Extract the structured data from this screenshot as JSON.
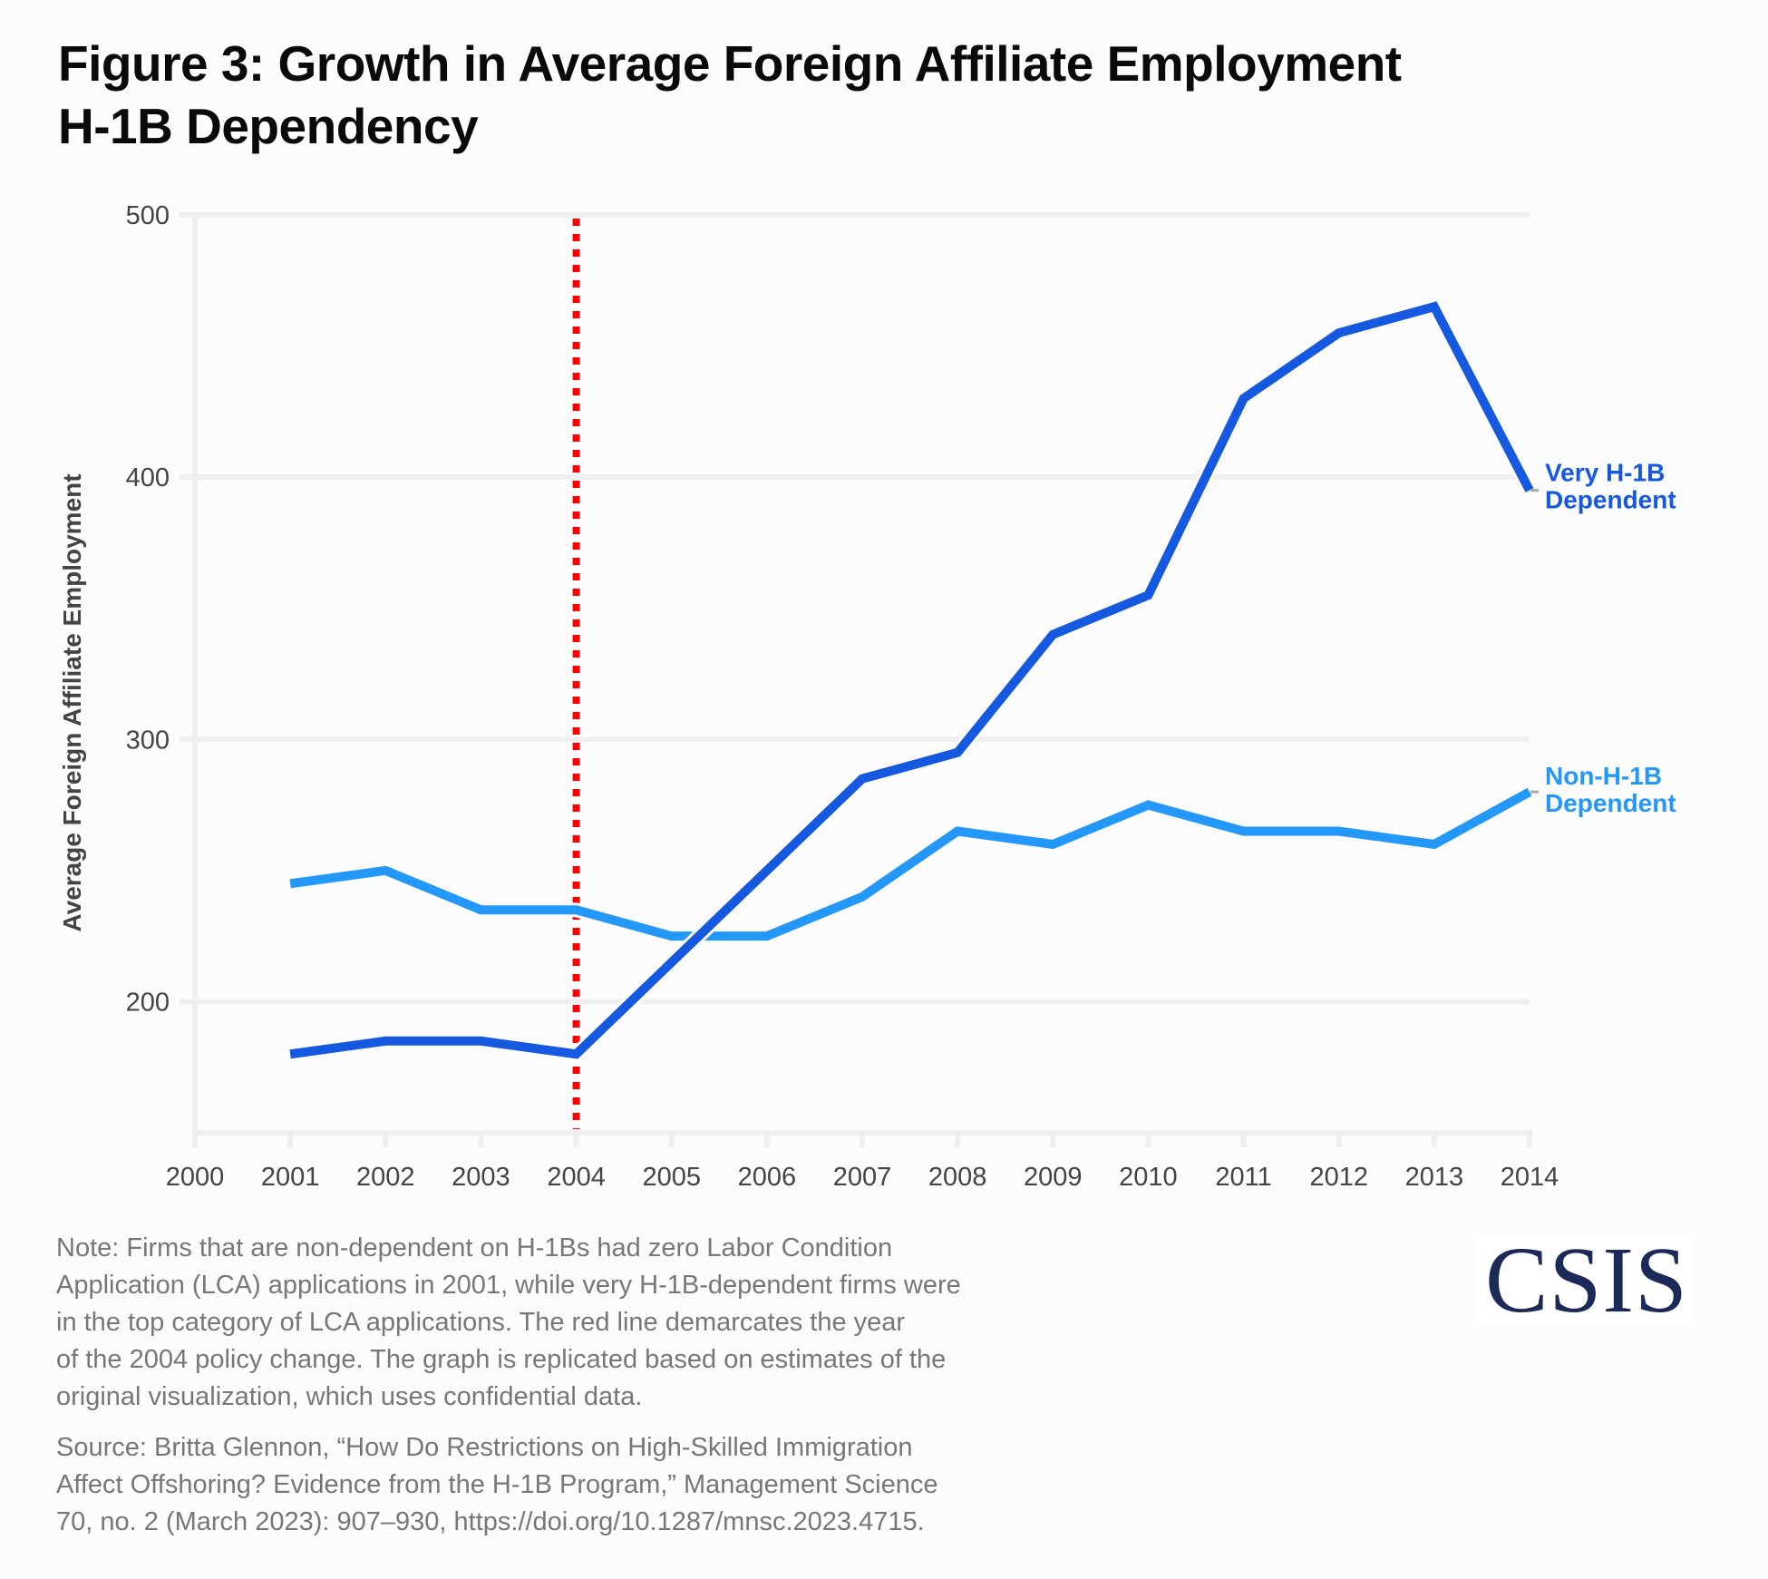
{
  "title": {
    "line1": "Figure 3: Growth in Average Foreign Affiliate Employment",
    "line2": "H-1B Dependency"
  },
  "chart_data": {
    "type": "line",
    "title": "Figure 3: Growth in Average Foreign Affiliate Employment H-1B Dependency",
    "xlabel": "",
    "ylabel": "Average Foreign Affiliate Employment",
    "xlim": [
      2000,
      2014
    ],
    "ylim": [
      150,
      500
    ],
    "x_ticks": [
      "2000",
      "2001",
      "2002",
      "2003",
      "2004",
      "2005",
      "2006",
      "2007",
      "2008",
      "2009",
      "2010",
      "2011",
      "2012",
      "2013",
      "2014"
    ],
    "y_ticks": [
      "200",
      "300",
      "400",
      "500"
    ],
    "grid": "horizontal",
    "legend": "direct labels at right end of lines",
    "x": [
      2001,
      2002,
      2003,
      2004,
      2005,
      2006,
      2007,
      2008,
      2009,
      2010,
      2011,
      2012,
      2013,
      2014
    ],
    "series": [
      {
        "name": "Very H-1B Dependent",
        "label_lines": [
          "Very H-1B",
          "Dependent"
        ],
        "color": "#1559e0",
        "values": [
          180,
          185,
          185,
          180,
          215,
          250,
          285,
          295,
          340,
          355,
          430,
          455,
          465,
          395
        ]
      },
      {
        "name": "Non-H-1B Dependent",
        "label_lines": [
          "Non-H-1B",
          "Dependent"
        ],
        "color": "#2398f9",
        "values": [
          245,
          250,
          235,
          235,
          225,
          225,
          240,
          265,
          260,
          275,
          265,
          265,
          260,
          280
        ]
      }
    ],
    "annotations": [
      {
        "type": "vertical-dotted-line",
        "x": 2004,
        "color": "#ff0000",
        "meaning": "2004 policy change"
      }
    ]
  },
  "note": {
    "lines": [
      "Note: Firms that are non-dependent on H-1Bs had zero Labor Condition",
      "Application (LCA) applications in 2001, while very H-1B-dependent firms were",
      "in the top category of LCA applications. The red line demarcates the year",
      "of the 2004 policy change. The graph is replicated based on estimates of the",
      "original visualization, which uses confidential data."
    ]
  },
  "source": {
    "lines": [
      "Source: Britta Glennon, “How Do Restrictions on High-Skilled Immigration",
      "Affect Offshoring? Evidence from the H-1B Program,” Management Science",
      "70, no. 2 (March 2023): 907–930, https://doi.org/10.1287/mnsc.2023.4715."
    ]
  },
  "logo": {
    "text": "CSIS",
    "color": "#1c2a5a"
  }
}
